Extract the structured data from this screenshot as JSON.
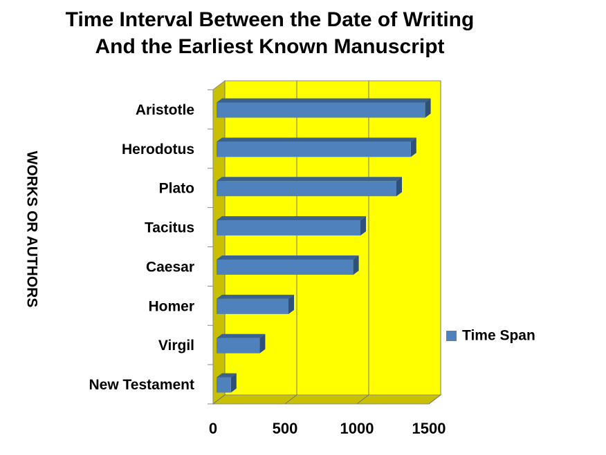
{
  "chart_data": {
    "type": "bar",
    "orientation": "horizontal",
    "three_d": true,
    "title": [
      "Time Interval Between the Date of Writing",
      "And the Earliest Known Manuscript"
    ],
    "y_label": "WORKS OR AUTHORS",
    "categories": [
      "Aristotle",
      "Herodotus",
      "Plato",
      "Tacitus",
      "Caesar",
      "Homer",
      "Virgil",
      "New Testament"
    ],
    "series": [
      {
        "name": "Time Span",
        "color": "#4f81bd",
        "values": [
          1450,
          1350,
          1250,
          1000,
          950,
          500,
          300,
          100
        ]
      }
    ],
    "xlim": [
      0,
      1500
    ],
    "xticks": [
      0,
      500,
      1000,
      1500
    ],
    "grid": true,
    "legend": "right",
    "wall_color": "#ffff00"
  }
}
